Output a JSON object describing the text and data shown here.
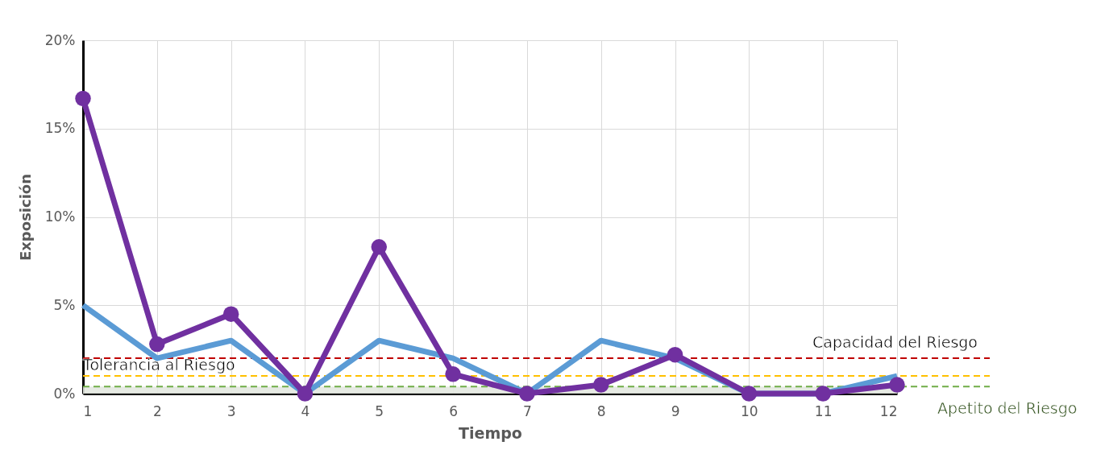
{
  "chart_data": {
    "type": "line",
    "xlabel": "Tiempo",
    "ylabel": "Exposición",
    "x": [
      1,
      2,
      3,
      4,
      5,
      6,
      7,
      8,
      9,
      10,
      11,
      12
    ],
    "series": [
      {
        "color": "#5b9bd5",
        "marker": "none",
        "values": [
          5.0,
          2.0,
          3.0,
          0,
          3.0,
          2.0,
          0,
          3.0,
          2.0,
          0,
          0,
          1.0
        ]
      },
      {
        "color": "#7030a0",
        "marker": "circle",
        "values": [
          16.7,
          2.8,
          4.5,
          0,
          8.3,
          1.1,
          0,
          0.5,
          2.2,
          0,
          0,
          0.5
        ]
      }
    ],
    "xlim": [
      1,
      12
    ],
    "xticks": [
      1,
      2,
      3,
      4,
      5,
      6,
      7,
      8,
      9,
      10,
      11,
      12
    ],
    "ylim": [
      0,
      20
    ],
    "yticks": [
      {
        "value": 0,
        "label": "0%"
      },
      {
        "value": 5,
        "label": "5%"
      },
      {
        "value": 10,
        "label": "10%"
      },
      {
        "value": 15,
        "label": "15%"
      },
      {
        "value": 20,
        "label": "20%"
      }
    ],
    "ref_lines": [
      {
        "axis": "y",
        "value": 2.0,
        "label": "Capacidad del Riesgo",
        "color": "#c00000",
        "line_style": "dashed"
      },
      {
        "axis": "y",
        "value": 1.0,
        "label": "Tolerancia al Riesgo",
        "color": "#ffc000",
        "line_style": "dashed"
      },
      {
        "axis": "y",
        "value": 0.4,
        "label": "Apetito del Riesgo",
        "color": "#70ad47",
        "line_style": "dashed"
      }
    ],
    "bands": [
      {
        "axis": "y",
        "from": 0,
        "to": 0.4,
        "color": "#e3e8e0"
      }
    ],
    "grid": true,
    "line_style": "solid"
  }
}
